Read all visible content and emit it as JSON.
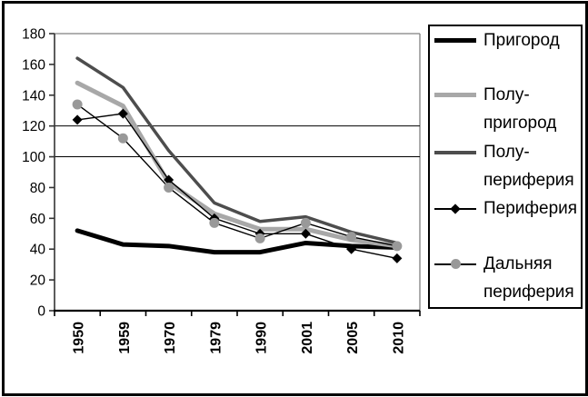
{
  "window": {
    "background": "#ffffff",
    "frame_border_color": "#000000"
  },
  "chart_data": {
    "type": "line",
    "title": "",
    "xlabel": "",
    "ylabel": "",
    "categories": [
      "1950",
      "1959",
      "1970",
      "1979",
      "1990",
      "2001",
      "2005",
      "2010"
    ],
    "series": [
      {
        "name": "Пригород",
        "values": [
          52,
          43,
          42,
          38,
          38,
          44,
          42,
          41
        ],
        "color": "#000000",
        "line_width": 5,
        "marker": "none",
        "marker_color": "#000000"
      },
      {
        "name": "Полу-пригород",
        "values": [
          148,
          133,
          83,
          63,
          53,
          53,
          46,
          42
        ],
        "color": "#a8a8a8",
        "line_width": 5,
        "marker": "none",
        "marker_color": "#a8a8a8"
      },
      {
        "name": "Полу-периферия",
        "values": [
          164,
          145,
          104,
          70,
          58,
          61,
          51,
          44
        ],
        "color": "#4d4d4d",
        "line_width": 3.5,
        "marker": "none",
        "marker_color": "#4d4d4d"
      },
      {
        "name": "Периферия",
        "values": [
          124,
          128,
          85,
          60,
          50,
          50,
          40,
          34
        ],
        "color": "#000000",
        "line_width": 1.4,
        "marker": "diamond",
        "marker_color": "#000000"
      },
      {
        "name": "Дальняя периферия",
        "values": [
          134,
          112,
          80,
          57,
          47,
          57,
          48,
          42
        ],
        "color": "#000000",
        "line_width": 1.4,
        "marker": "circle",
        "marker_color": "#999999"
      }
    ],
    "y_ticks": [
      0,
      20,
      40,
      60,
      80,
      100,
      120,
      140,
      160,
      180
    ],
    "ylim": [
      0,
      180
    ],
    "reference_lines": [
      100,
      120
    ],
    "grid": "horizontal reference lines at 100 and 120 only; gray border line at top (180) and right edge of plot",
    "legend_position": "right",
    "axis_colors": {
      "y_axis": "#333333",
      "x_axis": "#000000",
      "top_right_border": "#808080",
      "reference_line": "#000000"
    }
  },
  "legend": {
    "items": [
      {
        "line1": "Пригород",
        "line2": ""
      },
      {
        "line1": "Полу-",
        "line2": "пригород"
      },
      {
        "line1": "Полу-",
        "line2": "периферия"
      },
      {
        "line1": "Периферия",
        "line2": ""
      },
      {
        "line1": "Дальняя",
        "line2": "периферия"
      }
    ]
  }
}
